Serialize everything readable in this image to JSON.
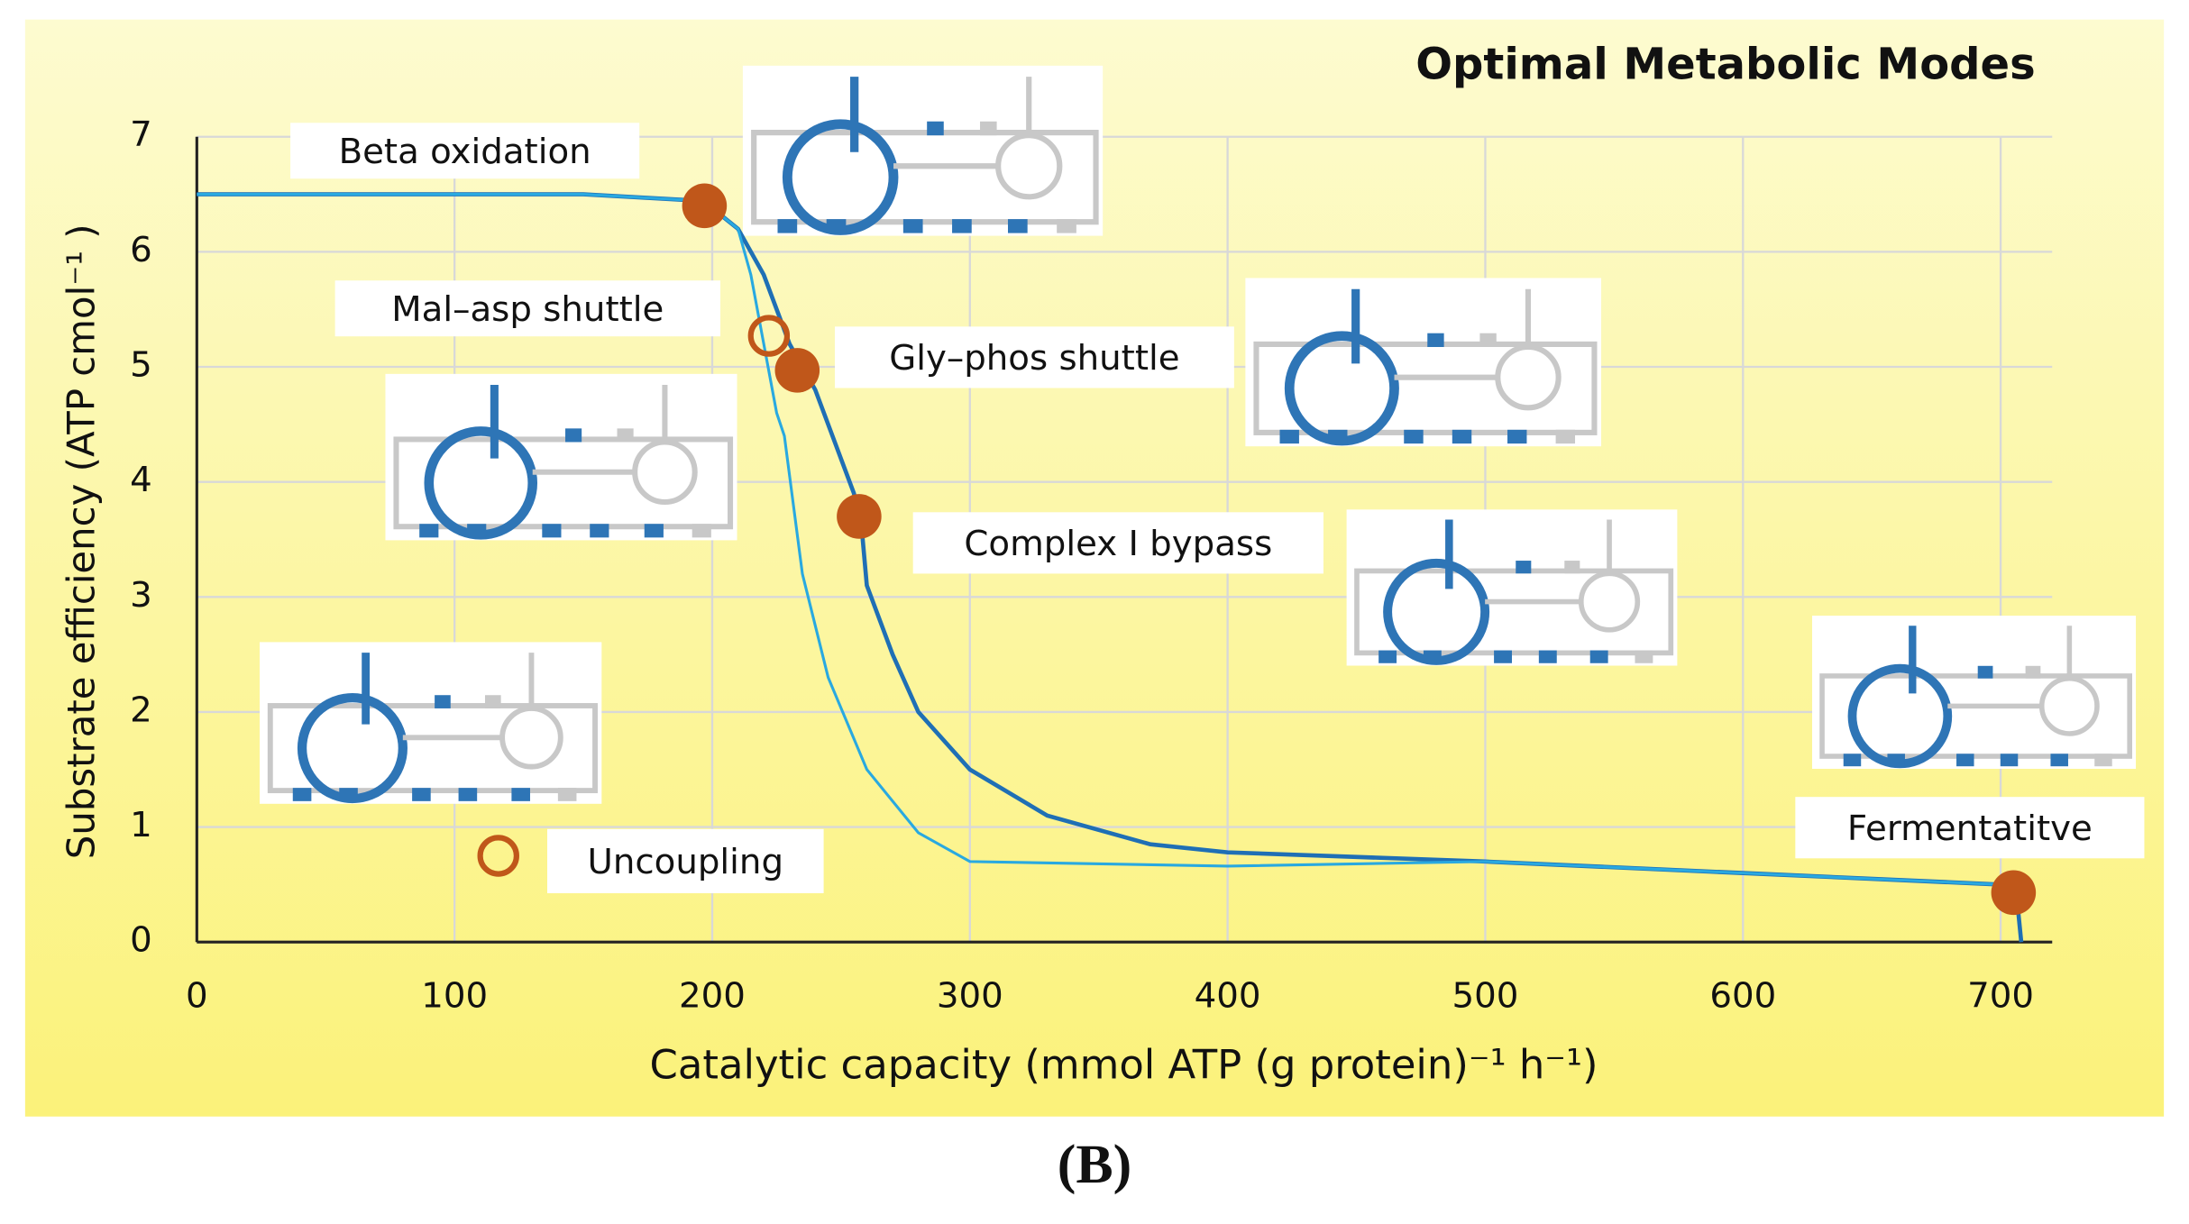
{
  "chart_data": {
    "type": "line",
    "title": "Optimal Metabolic Modes",
    "x_label": "Catalytic capacity (mmol ATP  (g protein)⁻¹ h⁻¹)",
    "y_label": "Substrate efficiency (ATP cmol⁻¹ )",
    "caption": "(B)",
    "xlim": [
      0,
      720
    ],
    "ylim": [
      0,
      7
    ],
    "xticks": [
      0,
      100,
      200,
      300,
      400,
      500,
      600,
      700
    ],
    "yticks": [
      0,
      1,
      2,
      3,
      4,
      5,
      6,
      7
    ],
    "grid": true,
    "series": [
      {
        "color": "#1f6fb5",
        "x": [
          0,
          100,
          150,
          190,
          200,
          210,
          220,
          230,
          240,
          250,
          255,
          258,
          260,
          270,
          280,
          300,
          330,
          370,
          400,
          500,
          600,
          700,
          706,
          708
        ],
        "values": [
          6.5,
          6.5,
          6.5,
          6.45,
          6.38,
          6.2,
          5.8,
          5.2,
          4.8,
          4.2,
          3.9,
          3.6,
          3.1,
          2.5,
          2.0,
          1.5,
          1.1,
          0.85,
          0.78,
          0.7,
          0.6,
          0.5,
          0.45,
          0
        ]
      },
      {
        "color": "#29a9e0",
        "x": [
          0,
          100,
          150,
          190,
          200,
          210,
          215,
          220,
          225,
          228,
          235,
          245,
          260,
          280,
          300,
          400,
          500,
          600,
          700
        ],
        "values": [
          6.5,
          6.5,
          6.5,
          6.45,
          6.38,
          6.2,
          5.8,
          5.2,
          4.6,
          4.4,
          3.2,
          2.3,
          1.5,
          0.95,
          0.7,
          0.66,
          0.7,
          0.6,
          0.5
        ]
      }
    ],
    "points": [
      {
        "label": "Beta oxidation",
        "x": 197,
        "y": 6.4,
        "filled": true
      },
      {
        "label": "Mal–asp shuttle",
        "x": 222,
        "y": 5.27,
        "filled": false
      },
      {
        "label": "Gly–phos shuttle",
        "x": 233,
        "y": 4.97,
        "filled": true
      },
      {
        "label": "Complex I bypass",
        "x": 257,
        "y": 3.7,
        "filled": true
      },
      {
        "label": "Fermentatitve",
        "x": 705,
        "y": 0.43,
        "filled": true
      },
      {
        "label": "Uncoupling",
        "x": 117,
        "y": 0.75,
        "filled": false
      }
    ],
    "point_color": "#c0571a"
  }
}
